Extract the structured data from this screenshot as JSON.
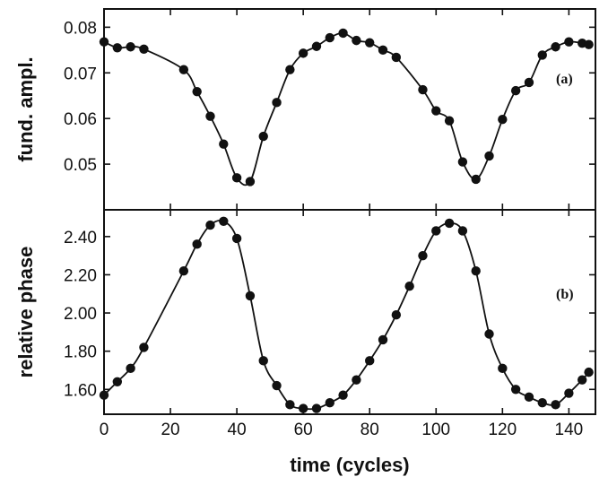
{
  "chart_data": [
    {
      "type": "line",
      "label": "(a)",
      "ylabel": "fund. ampl.",
      "xlabel": "",
      "xlim": [
        0,
        148
      ],
      "ylim": [
        0.04,
        0.084
      ],
      "xticks": [
        "0",
        "20",
        "40",
        "60",
        "80",
        "100",
        "120",
        "140"
      ],
      "yticks": [
        "0.05",
        "0.06",
        "0.07",
        "0.08"
      ],
      "grid": false,
      "marker": "filled-circle",
      "color": "#111111",
      "series": [
        {
          "x": [
            0,
            4,
            8,
            12,
            24,
            28,
            32,
            36,
            40,
            44,
            48,
            52,
            56,
            60,
            64,
            68,
            72,
            76,
            80,
            84,
            88,
            96,
            100,
            104,
            108,
            112,
            116,
            120,
            124,
            128,
            132,
            136,
            140,
            144,
            146
          ],
          "y": [
            0.0768,
            0.0755,
            0.0757,
            0.0752,
            0.0707,
            0.0659,
            0.0605,
            0.0544,
            0.047,
            0.0462,
            0.0561,
            0.0635,
            0.0707,
            0.0743,
            0.0758,
            0.0777,
            0.0787,
            0.0771,
            0.0766,
            0.075,
            0.0734,
            0.0663,
            0.0617,
            0.0595,
            0.0505,
            0.0467,
            0.0518,
            0.0598,
            0.0661,
            0.0679,
            0.0739,
            0.0757,
            0.0768,
            0.0765,
            0.0762
          ]
        }
      ]
    },
    {
      "type": "line",
      "label": "(b)",
      "ylabel": "relative phase",
      "xlabel": "time (cycles)",
      "xlim": [
        0,
        148
      ],
      "ylim": [
        1.47,
        2.54
      ],
      "xticks": [
        "0",
        "20",
        "40",
        "60",
        "80",
        "100",
        "120",
        "140"
      ],
      "yticks": [
        "1.60",
        "1.80",
        "2.00",
        "2.20",
        "2.40"
      ],
      "grid": false,
      "marker": "filled-circle",
      "color": "#111111",
      "series": [
        {
          "x": [
            0,
            4,
            8,
            12,
            24,
            28,
            32,
            36,
            40,
            44,
            48,
            52,
            56,
            60,
            64,
            68,
            72,
            76,
            80,
            84,
            88,
            92,
            96,
            100,
            104,
            108,
            112,
            116,
            120,
            124,
            128,
            132,
            136,
            140,
            144,
            146
          ],
          "y": [
            1.57,
            1.64,
            1.71,
            1.82,
            2.22,
            2.36,
            2.46,
            2.48,
            2.39,
            2.09,
            1.75,
            1.62,
            1.52,
            1.5,
            1.5,
            1.53,
            1.57,
            1.65,
            1.75,
            1.86,
            1.99,
            2.14,
            2.3,
            2.43,
            2.47,
            2.43,
            2.22,
            1.89,
            1.71,
            1.6,
            1.56,
            1.53,
            1.52,
            1.58,
            1.65,
            1.69
          ]
        }
      ]
    }
  ]
}
